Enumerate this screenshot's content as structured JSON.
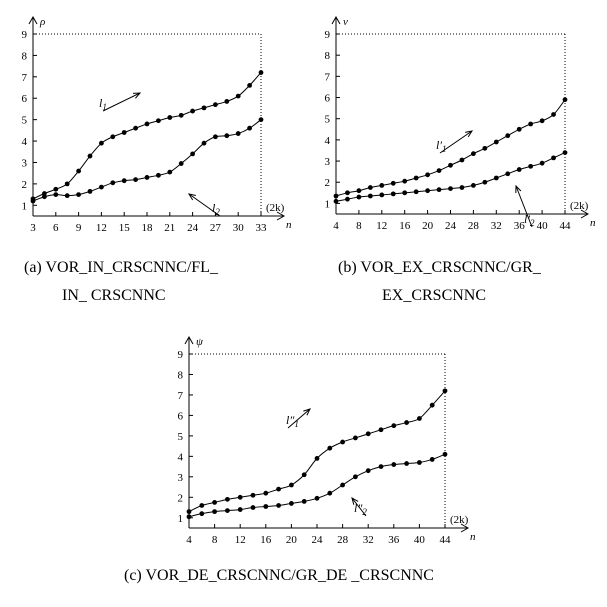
{
  "chart_data": [
    {
      "type": "line",
      "ylabel": "ρ",
      "xlabel": "n",
      "x_unit": "(2k)",
      "xlim": [
        3,
        33
      ],
      "ylim": [
        0.5,
        9
      ],
      "x_ticks": [
        3,
        6,
        9,
        12,
        15,
        18,
        21,
        24,
        27,
        30,
        33
      ],
      "y_ticks": [
        1,
        2,
        3,
        4,
        5,
        6,
        7,
        8,
        9
      ],
      "grid": false,
      "caption": [
        "(a)  VOR_IN_CRSCNNC/FL_",
        "IN_ CRSCNNC"
      ],
      "series": [
        {
          "name": "l1",
          "x": [
            3,
            4.5,
            6,
            7.5,
            9,
            10.5,
            12,
            13.5,
            15,
            16.5,
            18,
            19.5,
            21,
            22.5,
            24,
            25.5,
            27,
            28.5,
            30,
            31.5,
            33
          ],
          "y": [
            1.3,
            1.55,
            1.75,
            2.0,
            2.6,
            3.3,
            3.9,
            4.2,
            4.4,
            4.6,
            4.8,
            4.95,
            5.1,
            5.2,
            5.4,
            5.55,
            5.7,
            5.85,
            6.1,
            6.6,
            7.2
          ]
        },
        {
          "name": "l2",
          "x": [
            3,
            4.5,
            6,
            7.5,
            9,
            10.5,
            12,
            13.5,
            15,
            16.5,
            18,
            19.5,
            21,
            22.5,
            24,
            25.5,
            27,
            28.5,
            30,
            31.5,
            33
          ],
          "y": [
            1.2,
            1.4,
            1.5,
            1.45,
            1.5,
            1.65,
            1.85,
            2.05,
            2.15,
            2.2,
            2.3,
            2.4,
            2.55,
            2.95,
            3.4,
            3.9,
            4.2,
            4.25,
            4.35,
            4.6,
            5.0
          ]
        }
      ]
    },
    {
      "type": "line",
      "ylabel": "ν",
      "xlabel": "n",
      "x_unit": "(2k)",
      "xlim": [
        4,
        44
      ],
      "ylim": [
        0.5,
        9
      ],
      "x_ticks": [
        4,
        8,
        12,
        16,
        20,
        24,
        28,
        32,
        36,
        40,
        44
      ],
      "y_ticks": [
        1,
        2,
        3,
        4,
        5,
        6,
        7,
        8,
        9
      ],
      "grid": false,
      "caption": [
        "(b)  VOR_EX_CRSCNNC/GR_",
        "EX_CRSCNNC"
      ],
      "series": [
        {
          "name": "l′1",
          "x": [
            4,
            6,
            8,
            10,
            12,
            14,
            16,
            18,
            20,
            22,
            24,
            26,
            28,
            30,
            32,
            34,
            36,
            38,
            40,
            42,
            44
          ],
          "y": [
            1.35,
            1.5,
            1.6,
            1.75,
            1.85,
            1.95,
            2.05,
            2.2,
            2.35,
            2.55,
            2.8,
            3.05,
            3.35,
            3.6,
            3.9,
            4.2,
            4.5,
            4.75,
            4.9,
            5.2,
            5.9
          ]
        },
        {
          "name": "l′2",
          "x": [
            4,
            6,
            8,
            10,
            12,
            14,
            16,
            18,
            20,
            22,
            24,
            26,
            28,
            30,
            32,
            34,
            36,
            38,
            40,
            42,
            44
          ],
          "y": [
            1.1,
            1.2,
            1.3,
            1.35,
            1.4,
            1.45,
            1.5,
            1.55,
            1.6,
            1.65,
            1.7,
            1.75,
            1.85,
            2.0,
            2.2,
            2.4,
            2.6,
            2.75,
            2.9,
            3.15,
            3.4
          ]
        }
      ]
    },
    {
      "type": "line",
      "ylabel": "ψ",
      "xlabel": "n",
      "x_unit": "(2k)",
      "xlim": [
        4,
        44
      ],
      "ylim": [
        0.5,
        9
      ],
      "x_ticks": [
        4,
        8,
        12,
        16,
        20,
        24,
        28,
        32,
        36,
        40,
        44
      ],
      "y_ticks": [
        1,
        2,
        3,
        4,
        5,
        6,
        7,
        8,
        9
      ],
      "grid": false,
      "caption": [
        "(c)  VOR_DE_CRSCNNC/GR_DE _CRSCNNC"
      ],
      "series": [
        {
          "name": "l″1",
          "x": [
            4,
            6,
            8,
            10,
            12,
            14,
            16,
            18,
            20,
            22,
            24,
            26,
            28,
            30,
            32,
            34,
            36,
            38,
            40,
            42,
            44
          ],
          "y": [
            1.3,
            1.6,
            1.75,
            1.9,
            2.0,
            2.1,
            2.2,
            2.4,
            2.6,
            3.1,
            3.9,
            4.4,
            4.7,
            4.9,
            5.1,
            5.3,
            5.5,
            5.65,
            5.85,
            6.5,
            7.2
          ]
        },
        {
          "name": "l″2",
          "x": [
            4,
            6,
            8,
            10,
            12,
            14,
            16,
            18,
            20,
            22,
            24,
            26,
            28,
            30,
            32,
            34,
            36,
            38,
            40,
            42,
            44
          ],
          "y": [
            1.05,
            1.2,
            1.3,
            1.35,
            1.4,
            1.5,
            1.55,
            1.6,
            1.7,
            1.8,
            1.95,
            2.2,
            2.6,
            3.0,
            3.3,
            3.5,
            3.6,
            3.65,
            3.7,
            3.85,
            4.1
          ]
        }
      ]
    }
  ]
}
